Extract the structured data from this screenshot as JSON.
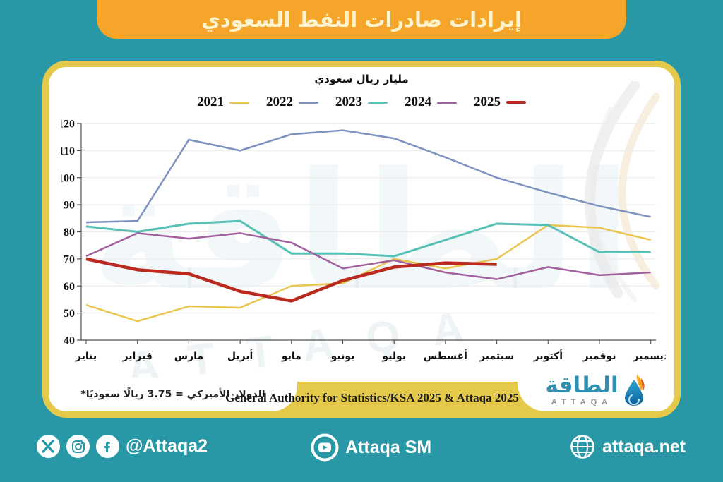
{
  "header": {
    "title": "إيرادات صادرات النفط السعودي"
  },
  "card": {
    "unit_label": "مليار ريال سعودي",
    "footnote": "الدولار الأميركي = 3.75 ريالًا سعوديًا*",
    "source": "General Authority for Statistics/KSA 2025 & Attaqa 2025",
    "logo": {
      "arabic": "الطاقة",
      "latin": "ATTAQA"
    }
  },
  "watermark": {
    "arabic": "الطاقة",
    "latin": "ATTAQA"
  },
  "chart_data": {
    "type": "line",
    "title": "مليار ريال سعودي",
    "categories": [
      "يناير",
      "فبراير",
      "مارس",
      "أبريل",
      "مايو",
      "يونيو",
      "يوليو",
      "أغسطس",
      "سبتمبر",
      "أكتوبر",
      "نوفمبر",
      "ديسمبر"
    ],
    "ylim": [
      40,
      120
    ],
    "ytick_step": 10,
    "grid": true,
    "legend_position": "top",
    "series": [
      {
        "name": "2021",
        "color": "#EAC54F",
        "width": 2.5,
        "values": [
          53,
          47,
          52.5,
          52,
          60,
          61,
          70,
          66.5,
          70,
          82.5,
          81.5,
          77
        ]
      },
      {
        "name": "2022",
        "color": "#7E92C0",
        "width": 2.5,
        "values": [
          83.5,
          84,
          114,
          110,
          116,
          117.5,
          114.5,
          107.5,
          100,
          94.5,
          89.5,
          85.5
        ]
      },
      {
        "name": "2023",
        "color": "#57C1B6",
        "width": 3,
        "values": [
          82,
          80,
          83,
          84,
          72,
          72,
          71,
          77,
          83,
          82.5,
          72.5,
          72.5
        ]
      },
      {
        "name": "2024",
        "color": "#A2609F",
        "width": 2.5,
        "values": [
          71,
          79.5,
          77.5,
          79.5,
          76,
          66.5,
          69.5,
          65,
          62.5,
          67,
          64,
          65
        ]
      },
      {
        "name": "2025",
        "color": "#BB2A1E",
        "width": 4.5,
        "values": [
          70,
          66,
          64.5,
          58,
          54.5,
          62,
          67,
          68.5,
          68
        ]
      }
    ]
  },
  "footer": {
    "handle": "@Attaqa2",
    "channel": "Attaqa SM",
    "website": "attaqa.net"
  },
  "colors": {
    "background": "#2898A6",
    "banner_orange": "#F5A62A",
    "accent_yellow": "#E4C94B",
    "title_text": "#FDF3CF",
    "logo_teal": "#2E8FB0"
  }
}
